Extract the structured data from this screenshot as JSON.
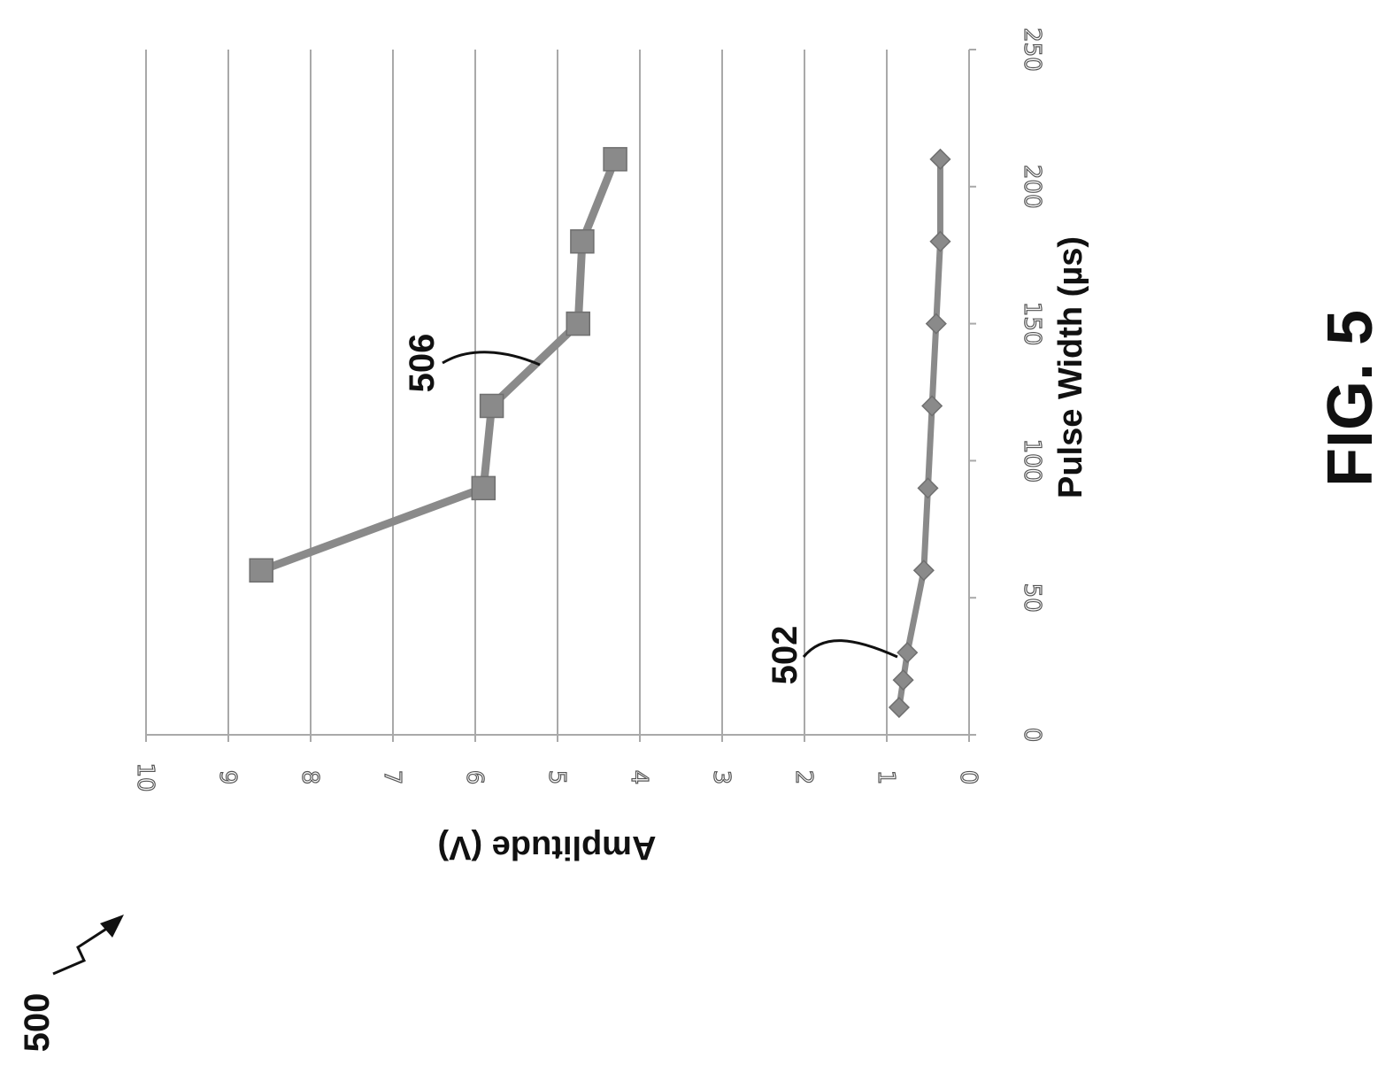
{
  "figure_label": "FIG. 5",
  "ref_figure": "500",
  "chart_data": {
    "type": "line",
    "xlabel": "Pulse Width (µs)",
    "ylabel": "Amplitude (V)",
    "xlim": [
      0,
      250
    ],
    "ylim": [
      0,
      10
    ],
    "x_ticks": [
      "0",
      "50",
      "100",
      "150",
      "200",
      "250"
    ],
    "y_ticks": [
      "0",
      "1",
      "2",
      "3",
      "4",
      "5",
      "6",
      "7",
      "8",
      "9",
      "10"
    ],
    "grid": "horizontal lines at each amplitude tick",
    "orientation": "figure page rotated 90 degrees",
    "series": [
      {
        "ref": "502",
        "marker": "diamond",
        "x": [
          10,
          20,
          30,
          60,
          90,
          120,
          150,
          180,
          210
        ],
        "y": [
          0.85,
          0.8,
          0.75,
          0.55,
          0.5,
          0.45,
          0.4,
          0.35,
          0.35
        ]
      },
      {
        "ref": "506",
        "marker": "square",
        "x": [
          60,
          90,
          120,
          150,
          180,
          210
        ],
        "y": [
          8.6,
          5.9,
          5.8,
          4.75,
          4.7,
          4.3
        ]
      }
    ]
  }
}
